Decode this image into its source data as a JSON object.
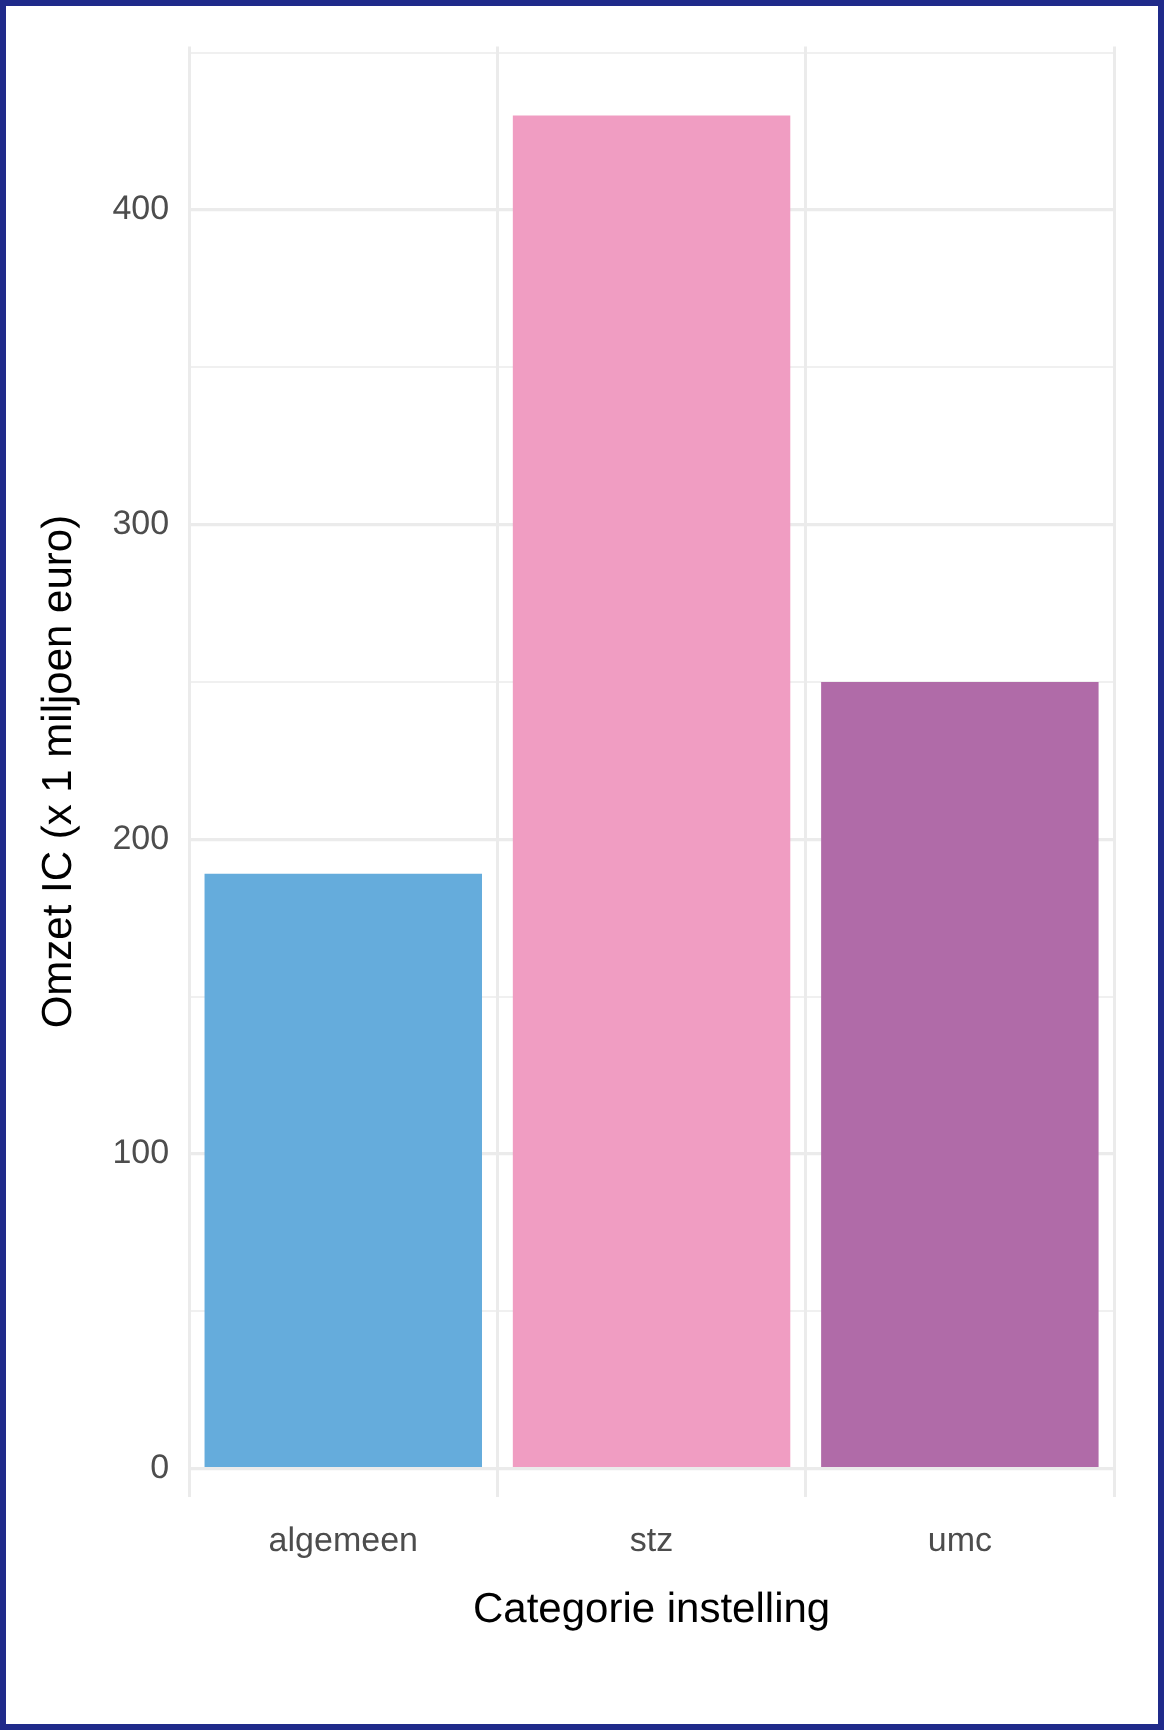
{
  "chart_data": {
    "type": "bar",
    "xlabel": "Categorie instelling",
    "ylabel": "Omzet IC (x 1 miljoen euro)",
    "categories": [
      "algemeen",
      "stz",
      "umc"
    ],
    "values": [
      189,
      430,
      250
    ],
    "colors": [
      "#65acdc",
      "#f09dc2",
      "#b06ba8"
    ],
    "ylim": [
      -9,
      452
    ],
    "yticks": [
      0,
      {
        "value": 50,
        "label": null
      },
      100,
      {
        "value": 150,
        "label": null
      },
      200,
      {
        "value": 250,
        "label": null
      },
      300,
      {
        "value": 350,
        "label": null
      },
      400,
      {
        "value": 450,
        "label": null
      }
    ],
    "grid": true
  }
}
